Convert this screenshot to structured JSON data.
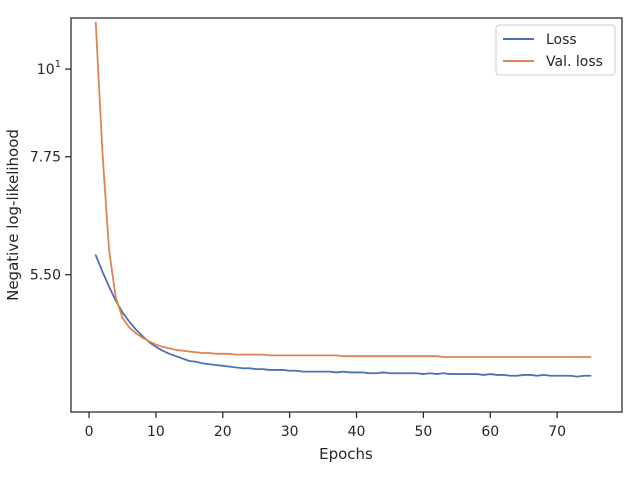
{
  "chart_data": {
    "type": "line",
    "xlabel": "Epochs",
    "ylabel": "Negative log-likelihood",
    "yscale": "log",
    "xlim": [
      -2.7,
      79.7
    ],
    "ylim": [
      3.69,
      11.6
    ],
    "x_ticks": [
      {
        "value": 0,
        "label": "0"
      },
      {
        "value": 10,
        "label": "10"
      },
      {
        "value": 20,
        "label": "20"
      },
      {
        "value": 30,
        "label": "30"
      },
      {
        "value": 40,
        "label": "40"
      },
      {
        "value": 50,
        "label": "50"
      },
      {
        "value": 60,
        "label": "60"
      },
      {
        "value": 70,
        "label": "70"
      }
    ],
    "y_ticks": [
      {
        "value": 5.5,
        "label": "5.50"
      },
      {
        "value": 7.75,
        "label": "7.75"
      },
      {
        "value": 10,
        "label_base": "10",
        "label_exp": "1"
      }
    ],
    "grid": false,
    "legend_position": "top-right",
    "series": [
      {
        "name": "Loss",
        "color": "#4c72b0",
        "x": [
          1,
          2,
          3,
          4,
          5,
          6,
          7,
          8,
          9,
          10,
          11,
          12,
          13,
          14,
          15,
          16,
          17,
          18,
          19,
          20,
          21,
          22,
          23,
          24,
          25,
          26,
          27,
          28,
          29,
          30,
          31,
          32,
          33,
          34,
          35,
          36,
          37,
          38,
          39,
          40,
          41,
          42,
          43,
          44,
          45,
          46,
          47,
          48,
          49,
          50,
          51,
          52,
          53,
          54,
          55,
          56,
          57,
          58,
          59,
          60,
          61,
          62,
          63,
          64,
          65,
          66,
          67,
          68,
          69,
          70,
          71,
          72,
          73,
          74,
          75
        ],
        "values": [
          5.82,
          5.55,
          5.31,
          5.1,
          4.93,
          4.8,
          4.69,
          4.6,
          4.52,
          4.46,
          4.41,
          4.37,
          4.34,
          4.31,
          4.28,
          4.27,
          4.25,
          4.24,
          4.23,
          4.22,
          4.21,
          4.2,
          4.19,
          4.19,
          4.18,
          4.18,
          4.17,
          4.17,
          4.17,
          4.16,
          4.16,
          4.15,
          4.15,
          4.15,
          4.15,
          4.15,
          4.14,
          4.15,
          4.14,
          4.14,
          4.14,
          4.13,
          4.13,
          4.14,
          4.13,
          4.13,
          4.13,
          4.13,
          4.13,
          4.12,
          4.13,
          4.12,
          4.13,
          4.12,
          4.12,
          4.12,
          4.12,
          4.12,
          4.11,
          4.12,
          4.11,
          4.11,
          4.1,
          4.1,
          4.11,
          4.11,
          4.1,
          4.11,
          4.1,
          4.1,
          4.1,
          4.1,
          4.09,
          4.1,
          4.1
        ]
      },
      {
        "name": "Val. loss",
        "color": "#dd8452",
        "x": [
          1,
          2,
          3,
          4,
          5,
          6,
          7,
          8,
          9,
          10,
          11,
          12,
          13,
          14,
          15,
          16,
          17,
          18,
          19,
          20,
          21,
          22,
          23,
          24,
          25,
          26,
          27,
          28,
          29,
          30,
          31,
          32,
          33,
          34,
          35,
          36,
          37,
          38,
          39,
          40,
          41,
          42,
          43,
          44,
          45,
          46,
          47,
          48,
          49,
          50,
          51,
          52,
          53,
          54,
          55,
          56,
          57,
          58,
          59,
          60,
          61,
          62,
          63,
          64,
          65,
          66,
          67,
          68,
          69,
          70,
          71,
          72,
          73,
          74,
          75
        ],
        "values": [
          11.45,
          7.85,
          5.9,
          5.15,
          4.85,
          4.72,
          4.64,
          4.58,
          4.53,
          4.49,
          4.46,
          4.44,
          4.42,
          4.41,
          4.4,
          4.39,
          4.38,
          4.38,
          4.37,
          4.37,
          4.37,
          4.36,
          4.36,
          4.36,
          4.36,
          4.36,
          4.35,
          4.35,
          4.35,
          4.35,
          4.35,
          4.35,
          4.35,
          4.35,
          4.35,
          4.35,
          4.35,
          4.34,
          4.34,
          4.34,
          4.34,
          4.34,
          4.34,
          4.34,
          4.34,
          4.34,
          4.34,
          4.34,
          4.34,
          4.34,
          4.34,
          4.34,
          4.33,
          4.33,
          4.33,
          4.33,
          4.33,
          4.33,
          4.33,
          4.33,
          4.33,
          4.33,
          4.33,
          4.33,
          4.33,
          4.33,
          4.33,
          4.33,
          4.33,
          4.33,
          4.33,
          4.33,
          4.33,
          4.33,
          4.33
        ]
      }
    ]
  }
}
